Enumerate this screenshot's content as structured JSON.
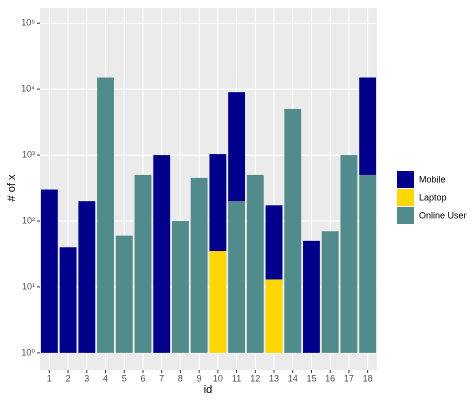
{
  "chart_data": {
    "type": "bar",
    "stacked": true,
    "log_scale": true,
    "x_label": "id",
    "y_label": "# of x",
    "categories": [
      "1",
      "2",
      "3",
      "4",
      "5",
      "6",
      "7",
      "8",
      "9",
      "10",
      "11",
      "12",
      "13",
      "14",
      "15",
      "16",
      "17",
      "18"
    ],
    "series": [
      {
        "name": "Laptop",
        "color": "#FFD700",
        "values": [
          null,
          null,
          null,
          null,
          null,
          null,
          null,
          null,
          null,
          35,
          null,
          null,
          13,
          null,
          null,
          null,
          null,
          null
        ]
      },
      {
        "name": "Online User",
        "color": "#528B8B",
        "values": [
          null,
          null,
          null,
          15000,
          60,
          500,
          null,
          100,
          450,
          null,
          200,
          500,
          null,
          5000,
          null,
          70,
          1000,
          500
        ]
      },
      {
        "name": "Mobile",
        "color": "#00008B",
        "values": [
          300,
          40,
          200,
          null,
          null,
          null,
          1000,
          null,
          null,
          1000,
          8800,
          null,
          160,
          null,
          50,
          null,
          null,
          14500
        ]
      }
    ],
    "legend_order": [
      "Mobile",
      "Laptop",
      "Online User"
    ],
    "ylim": [
      0.55,
      170000
    ],
    "yticks": [
      {
        "value": 1,
        "label": "10⁰"
      },
      {
        "value": 10,
        "label": "10¹"
      },
      {
        "value": 100,
        "label": "10²"
      },
      {
        "value": 1000,
        "label": "10³"
      },
      {
        "value": 10000,
        "label": "10⁴"
      },
      {
        "value": 100000,
        "label": "10⁵"
      }
    ],
    "grid": true,
    "legend": "right"
  }
}
